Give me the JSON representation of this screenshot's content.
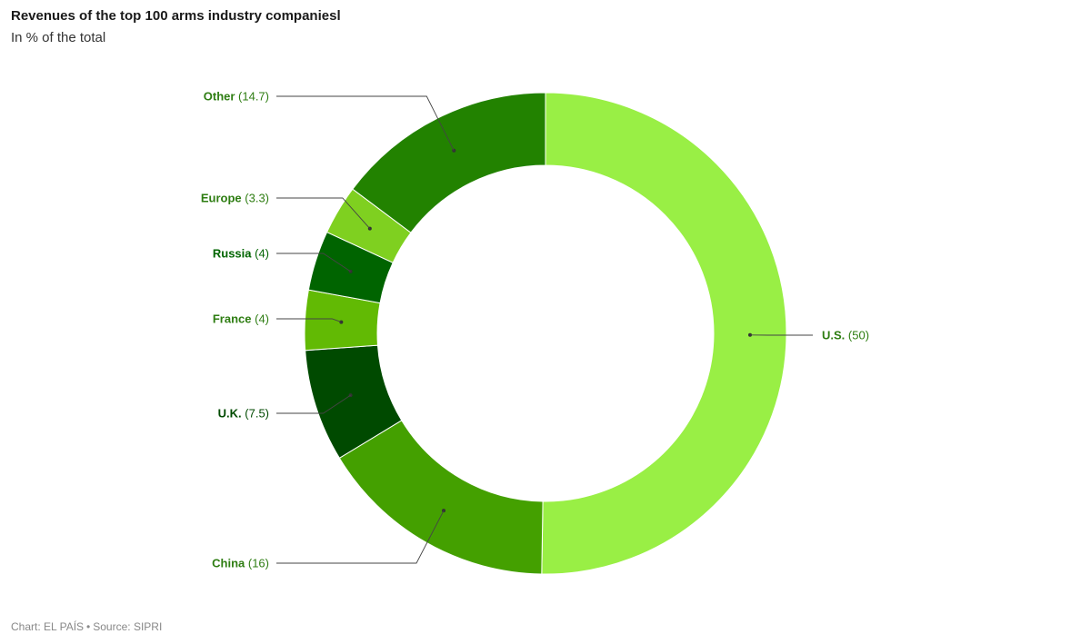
{
  "header": {
    "title": "Revenues of the top 100 arms industry companiesl",
    "subtitle": "In % of the total"
  },
  "footer": {
    "chart_credit": "Chart: EL PAÍS",
    "separator": "•",
    "source": "Source: SIPRI"
  },
  "chart_data": {
    "type": "pie",
    "variant": "donut",
    "title": "Revenues of the top 100 arms industry companiesl",
    "subtitle": "In % of the total",
    "slices": [
      {
        "label": "U.S.",
        "value": 50,
        "value_text": "(50)",
        "color": "#99ef45",
        "label_color": "#2e7d12"
      },
      {
        "label": "China",
        "value": 16,
        "value_text": "(16)",
        "color": "#44a000",
        "label_color": "#2e7d12"
      },
      {
        "label": "U.K.",
        "value": 7.5,
        "value_text": "(7.5)",
        "color": "#004a00",
        "label_color": "#004a00"
      },
      {
        "label": "France",
        "value": 4,
        "value_text": "(4)",
        "color": "#62ba04",
        "label_color": "#2e7d12"
      },
      {
        "label": "Russia",
        "value": 4,
        "value_text": "(4)",
        "color": "#006400",
        "label_color": "#006400"
      },
      {
        "label": "Europe",
        "value": 3.3,
        "value_text": "(3.3)",
        "color": "#7fd020",
        "label_color": "#2e7d12"
      },
      {
        "label": "Other",
        "value": 14.7,
        "value_text": "(14.7)",
        "color": "#228200",
        "label_color": "#2e7d12"
      }
    ]
  }
}
